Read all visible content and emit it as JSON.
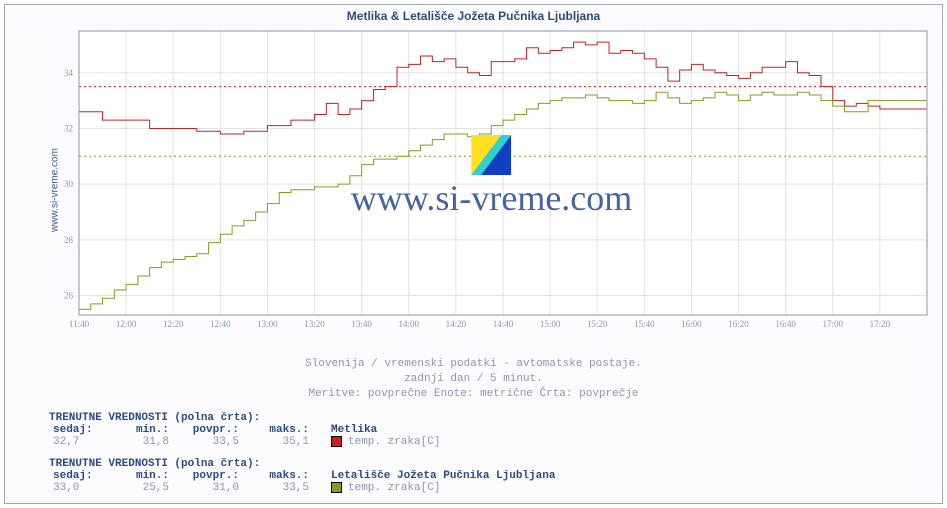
{
  "title": "Metlika & Letališče Jožeta Pučnika Ljubljana",
  "side_label": "www.si-vreme.com",
  "watermark_text": "www.si-vreme.com",
  "sub1": "Slovenija / vremenski podatki - avtomatske postaje.",
  "sub2": "zadnji dan / 5 minut.",
  "sub3": "Meritve: povprečne  Enote: metrične  Črta: povprečje",
  "chart": {
    "type": "line",
    "background_color": "#ffffff",
    "plot_border_color": "#8a94ac",
    "grid_color": "#e2e2e8",
    "tick_font_size": 9,
    "tick_color": "#8a96b0",
    "x": {
      "min": 700,
      "max": 1060,
      "ticks": [
        700,
        720,
        740,
        760,
        780,
        800,
        820,
        840,
        860,
        880,
        900,
        920,
        940,
        960,
        980,
        1000,
        1020,
        1040
      ],
      "labels": [
        "11:40",
        "12:00",
        "12:20",
        "12:40",
        "13:00",
        "13:20",
        "13:40",
        "14:00",
        "14:20",
        "14:40",
        "15:00",
        "15:20",
        "15:40",
        "16:00",
        "16:20",
        "16:40",
        "17:00",
        "17:20"
      ]
    },
    "y": {
      "min": 25.3,
      "max": 35.5,
      "ticks": [
        26,
        28,
        30,
        32,
        34
      ],
      "labels": [
        "26",
        "28",
        "30",
        "32",
        "34"
      ]
    },
    "ref_lines": [
      {
        "y": 33.5,
        "color": "#c82020",
        "dash": "2,3"
      },
      {
        "y": 31.0,
        "color": "#8a9a20",
        "dash": "2,3"
      }
    ],
    "series": [
      {
        "name": "Metlika",
        "color": "#c82020",
        "width": 1,
        "step": true,
        "points": [
          [
            700,
            32.6
          ],
          [
            710,
            32.3
          ],
          [
            720,
            32.3
          ],
          [
            730,
            32.0
          ],
          [
            740,
            32.0
          ],
          [
            750,
            31.9
          ],
          [
            760,
            31.8
          ],
          [
            770,
            31.9
          ],
          [
            780,
            32.1
          ],
          [
            790,
            32.3
          ],
          [
            800,
            32.5
          ],
          [
            805,
            32.9
          ],
          [
            810,
            32.5
          ],
          [
            815,
            32.7
          ],
          [
            820,
            33.0
          ],
          [
            825,
            33.4
          ],
          [
            830,
            33.5
          ],
          [
            835,
            34.2
          ],
          [
            840,
            34.3
          ],
          [
            845,
            34.6
          ],
          [
            850,
            34.4
          ],
          [
            855,
            34.5
          ],
          [
            860,
            34.2
          ],
          [
            865,
            34.0
          ],
          [
            870,
            33.9
          ],
          [
            875,
            34.4
          ],
          [
            880,
            34.4
          ],
          [
            885,
            34.5
          ],
          [
            890,
            34.9
          ],
          [
            895,
            34.7
          ],
          [
            900,
            34.8
          ],
          [
            905,
            34.9
          ],
          [
            910,
            35.1
          ],
          [
            915,
            35.0
          ],
          [
            920,
            35.1
          ],
          [
            925,
            34.7
          ],
          [
            930,
            34.8
          ],
          [
            935,
            34.7
          ],
          [
            940,
            34.5
          ],
          [
            945,
            34.2
          ],
          [
            950,
            33.7
          ],
          [
            955,
            34.1
          ],
          [
            960,
            34.3
          ],
          [
            965,
            34.1
          ],
          [
            970,
            34.0
          ],
          [
            975,
            33.9
          ],
          [
            980,
            33.8
          ],
          [
            985,
            34.0
          ],
          [
            990,
            34.2
          ],
          [
            995,
            34.2
          ],
          [
            1000,
            34.4
          ],
          [
            1005,
            34.0
          ],
          [
            1010,
            33.9
          ],
          [
            1015,
            33.5
          ],
          [
            1020,
            33.0
          ],
          [
            1025,
            32.8
          ],
          [
            1030,
            32.9
          ],
          [
            1035,
            32.8
          ],
          [
            1040,
            32.7
          ],
          [
            1050,
            32.7
          ],
          [
            1060,
            32.7
          ]
        ]
      },
      {
        "name": "Letališče Jožeta Pučnika Ljubljana",
        "color": "#8a9a20",
        "width": 1,
        "step": true,
        "points": [
          [
            700,
            25.5
          ],
          [
            705,
            25.7
          ],
          [
            710,
            25.9
          ],
          [
            715,
            26.2
          ],
          [
            720,
            26.4
          ],
          [
            725,
            26.7
          ],
          [
            730,
            27.0
          ],
          [
            735,
            27.2
          ],
          [
            740,
            27.3
          ],
          [
            745,
            27.4
          ],
          [
            750,
            27.5
          ],
          [
            755,
            27.9
          ],
          [
            760,
            28.2
          ],
          [
            765,
            28.5
          ],
          [
            770,
            28.7
          ],
          [
            775,
            29.0
          ],
          [
            780,
            29.3
          ],
          [
            785,
            29.7
          ],
          [
            790,
            29.8
          ],
          [
            795,
            29.8
          ],
          [
            800,
            29.9
          ],
          [
            805,
            29.9
          ],
          [
            810,
            30.0
          ],
          [
            815,
            30.3
          ],
          [
            820,
            30.7
          ],
          [
            825,
            30.9
          ],
          [
            830,
            30.9
          ],
          [
            835,
            31.0
          ],
          [
            840,
            31.2
          ],
          [
            845,
            31.4
          ],
          [
            850,
            31.6
          ],
          [
            855,
            31.8
          ],
          [
            860,
            31.8
          ],
          [
            865,
            31.7
          ],
          [
            870,
            31.8
          ],
          [
            875,
            32.1
          ],
          [
            880,
            32.3
          ],
          [
            885,
            32.5
          ],
          [
            890,
            32.7
          ],
          [
            895,
            32.9
          ],
          [
            900,
            33.0
          ],
          [
            905,
            33.1
          ],
          [
            910,
            33.1
          ],
          [
            915,
            33.2
          ],
          [
            920,
            33.1
          ],
          [
            925,
            33.0
          ],
          [
            930,
            33.0
          ],
          [
            935,
            32.9
          ],
          [
            940,
            33.0
          ],
          [
            945,
            33.3
          ],
          [
            950,
            33.1
          ],
          [
            955,
            32.9
          ],
          [
            960,
            33.0
          ],
          [
            965,
            33.1
          ],
          [
            970,
            33.3
          ],
          [
            975,
            33.2
          ],
          [
            980,
            33.0
          ],
          [
            985,
            33.2
          ],
          [
            990,
            33.3
          ],
          [
            995,
            33.2
          ],
          [
            1000,
            33.2
          ],
          [
            1005,
            33.3
          ],
          [
            1010,
            33.2
          ],
          [
            1015,
            33.0
          ],
          [
            1020,
            32.8
          ],
          [
            1025,
            32.6
          ],
          [
            1030,
            32.6
          ],
          [
            1035,
            33.0
          ],
          [
            1040,
            33.0
          ],
          [
            1050,
            33.0
          ],
          [
            1060,
            33.0
          ]
        ]
      }
    ]
  },
  "stats": [
    {
      "title": "TRENUTNE VREDNOSTI (polna črta):",
      "headers": [
        "sedaj:",
        "min.:",
        "povpr.:",
        "maks.:"
      ],
      "values": [
        "32,7",
        "31,8",
        "33,5",
        "35,1"
      ],
      "legend_label": "Metlika",
      "legend_metric": "temp. zraka[C]",
      "swatch_color": "#c82020"
    },
    {
      "title": "TRENUTNE VREDNOSTI (polna črta):",
      "headers": [
        "sedaj:",
        "min.:",
        "povpr.:",
        "maks.:"
      ],
      "values": [
        "33,0",
        "25,5",
        "31,0",
        "33,5"
      ],
      "legend_label": "Letališče Jožeta Pučnika Ljubljana",
      "legend_metric": "temp. zraka[C]",
      "swatch_color": "#8a9a20"
    }
  ],
  "logo": {
    "colors": {
      "tl": "#ffe020",
      "br": "#1040c0",
      "diag": "#30d0d0"
    }
  }
}
